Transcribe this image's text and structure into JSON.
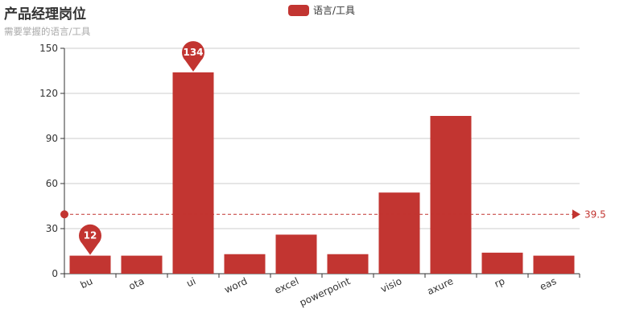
{
  "chart_data": {
    "type": "bar",
    "title": "产品经理岗位",
    "subtitle": "需要掌握的语言/工具",
    "series": [
      {
        "name": "语言/工具",
        "values": [
          12,
          12,
          134,
          13,
          26,
          13,
          54,
          105,
          14,
          12
        ]
      }
    ],
    "categories": [
      "bu",
      "ota",
      "ui",
      "word",
      "excel",
      "powerpoint",
      "visio",
      "axure",
      "rp",
      "eas"
    ],
    "ylim": [
      0,
      150
    ],
    "yticks": [
      0,
      30,
      60,
      90,
      120,
      150
    ],
    "mark_points": [
      {
        "category": "ui",
        "value": 134,
        "label": "134"
      },
      {
        "category": "bu",
        "value": 12,
        "label": "12"
      }
    ],
    "mark_line": {
      "value": 39.5,
      "label": "39.5"
    },
    "grid": true,
    "legend_position": "top-center",
    "bar_color": "#c23531"
  }
}
